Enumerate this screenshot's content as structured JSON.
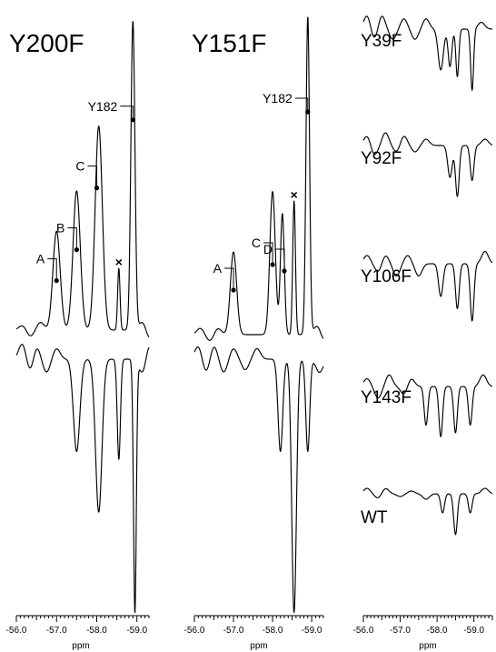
{
  "chart_data": [
    {
      "type": "line",
      "title": "Y200F",
      "xlabel": "ppm",
      "xlim": [
        -56.0,
        -59.3
      ],
      "x_reversed": true,
      "xticks": [
        "-56.0",
        "-57.0",
        "-58.0",
        "-59.0"
      ],
      "series": [
        {
          "role": "upper",
          "baseline": [
            [
              -56.0,
              0.02
            ],
            [
              -59.3,
              0.02
            ]
          ],
          "peaks": [
            {
              "x": -57.0,
              "y": 0.32,
              "w": 0.09
            },
            {
              "x": -57.5,
              "y": 0.45,
              "w": 0.09
            },
            {
              "x": -58.05,
              "y": 0.66,
              "w": 0.09
            },
            {
              "x": -58.55,
              "y": 0.2,
              "w": 0.03
            },
            {
              "x": -58.9,
              "y": 1.0,
              "w": 0.05
            }
          ],
          "ripples": [
            [
              -56.15,
              0.015
            ],
            [
              -56.35,
              -0.02
            ],
            [
              -56.6,
              0.025
            ],
            [
              -59.15,
              0.03
            ],
            [
              -59.3,
              -0.03
            ]
          ]
        },
        {
          "role": "lower",
          "peaks": [
            {
              "x": -57.5,
              "y": -0.35,
              "w": 0.08
            },
            {
              "x": -58.05,
              "y": -0.58,
              "w": 0.08
            },
            {
              "x": -58.55,
              "y": -0.38,
              "w": 0.04
            },
            {
              "x": -58.95,
              "y": -0.96,
              "w": 0.035
            }
          ],
          "ripples": [
            [
              -56.15,
              0.06
            ],
            [
              -56.35,
              -0.05
            ],
            [
              -56.5,
              0.05
            ],
            [
              -56.75,
              -0.05
            ],
            [
              -57.0,
              0.04
            ],
            [
              -59.15,
              -0.06
            ],
            [
              -59.3,
              0.06
            ]
          ]
        }
      ],
      "annotations": [
        {
          "label": "A",
          "x": -57.0,
          "y": 0.16
        },
        {
          "label": "B",
          "x": -57.5,
          "y": 0.26
        },
        {
          "label": "C",
          "x": -58.0,
          "y": 0.46
        },
        {
          "label": "Y182",
          "x": -58.9,
          "y": 0.68
        },
        {
          "label": "×",
          "x": -58.55,
          "y": 0.22
        }
      ]
    },
    {
      "type": "line",
      "title": "Y151F",
      "xlabel": "ppm",
      "xlim": [
        -56.0,
        -59.3
      ],
      "x_reversed": true,
      "xticks": [
        "-56.0",
        "-57.0",
        "-58.0",
        "-59.0"
      ],
      "series": [
        {
          "role": "upper",
          "baseline": [
            [
              -56.0,
              0.02
            ],
            [
              -59.3,
              0.02
            ]
          ],
          "peaks": [
            {
              "x": -57.0,
              "y": 0.26,
              "w": 0.08
            },
            {
              "x": -58.0,
              "y": 0.45,
              "w": 0.07
            },
            {
              "x": -58.25,
              "y": 0.38,
              "w": 0.05
            },
            {
              "x": -58.55,
              "y": 0.42,
              "w": 0.035
            },
            {
              "x": -58.9,
              "y": 1.0,
              "w": 0.045
            }
          ],
          "ripples": [
            [
              -56.15,
              0.02
            ],
            [
              -56.4,
              -0.02
            ],
            [
              -56.6,
              0.02
            ],
            [
              -59.15,
              0.03
            ],
            [
              -59.3,
              -0.02
            ]
          ]
        },
        {
          "role": "lower",
          "peaks": [
            {
              "x": -58.2,
              "y": -0.35,
              "w": 0.06
            },
            {
              "x": -58.55,
              "y": -0.96,
              "w": 0.06
            },
            {
              "x": -58.9,
              "y": -0.35,
              "w": 0.05
            }
          ],
          "ripples": [
            [
              -56.1,
              0.05
            ],
            [
              -56.3,
              -0.05
            ],
            [
              -56.5,
              0.05
            ],
            [
              -56.75,
              -0.05
            ],
            [
              -57.0,
              0.04
            ],
            [
              -57.3,
              -0.04
            ],
            [
              -57.6,
              0.04
            ],
            [
              -59.2,
              -0.05
            ]
          ]
        }
      ],
      "annotations": [
        {
          "label": "A",
          "x": -57.0,
          "y": 0.14
        },
        {
          "label": "C",
          "x": -58.0,
          "y": 0.22
        },
        {
          "label": "D",
          "x": -58.3,
          "y": 0.2
        },
        {
          "label": "Y182",
          "x": -58.9,
          "y": 0.7
        },
        {
          "label": "×",
          "x": -58.55,
          "y": 0.44
        }
      ]
    },
    {
      "type": "line",
      "xlabel": "ppm",
      "xlim": [
        -56.0,
        -59.5
      ],
      "x_reversed": true,
      "xticks": [
        "-56.0",
        "-57.0",
        "-58.0",
        "-59.0"
      ],
      "traces": [
        {
          "name": "Y39F",
          "peaks": [
            {
              "x": -58.1,
              "y": -0.6,
              "w": 0.07
            },
            {
              "x": -58.35,
              "y": -0.55,
              "w": 0.05
            },
            {
              "x": -58.55,
              "y": -0.7,
              "w": 0.04
            },
            {
              "x": -58.95,
              "y": -0.9,
              "w": 0.04
            }
          ],
          "ripples": [
            [
              -56.1,
              0.2
            ],
            [
              -56.3,
              -0.15
            ],
            [
              -56.5,
              0.2
            ],
            [
              -56.8,
              -0.15
            ],
            [
              -57.1,
              0.15
            ],
            [
              -57.4,
              -0.15
            ],
            [
              -57.7,
              0.15
            ],
            [
              -59.2,
              0.1
            ]
          ]
        },
        {
          "name": "Y92F",
          "peaks": [
            {
              "x": -58.35,
              "y": -0.5,
              "w": 0.06
            },
            {
              "x": -58.55,
              "y": -0.8,
              "w": 0.05
            },
            {
              "x": -58.95,
              "y": -0.55,
              "w": 0.05
            }
          ],
          "ripples": [
            [
              -56.1,
              0.15
            ],
            [
              -56.3,
              -0.15
            ],
            [
              -56.6,
              0.2
            ],
            [
              -56.9,
              -0.1
            ],
            [
              -57.1,
              0.15
            ],
            [
              -57.4,
              -0.1
            ],
            [
              -57.7,
              0.1
            ],
            [
              -59.3,
              0.1
            ]
          ]
        },
        {
          "name": "Y106F",
          "peaks": [
            {
              "x": -58.1,
              "y": -0.4,
              "w": 0.06
            },
            {
              "x": -58.55,
              "y": -0.55,
              "w": 0.05
            },
            {
              "x": -58.95,
              "y": -0.7,
              "w": 0.05
            }
          ],
          "ripples": [
            [
              -56.1,
              0.1
            ],
            [
              -56.4,
              -0.1
            ],
            [
              -56.6,
              0.1
            ],
            [
              -56.9,
              -0.15
            ],
            [
              -57.2,
              0.1
            ],
            [
              -57.5,
              -0.15
            ],
            [
              -59.3,
              0.15
            ]
          ]
        },
        {
          "name": "Y143F",
          "peaks": [
            {
              "x": -57.7,
              "y": -0.5,
              "w": 0.05
            },
            {
              "x": -58.1,
              "y": -0.65,
              "w": 0.05
            },
            {
              "x": -58.5,
              "y": -0.6,
              "w": 0.05
            },
            {
              "x": -58.9,
              "y": -0.5,
              "w": 0.05
            }
          ],
          "ripples": [
            [
              -56.1,
              0.1
            ],
            [
              -56.4,
              -0.15
            ],
            [
              -56.7,
              0.15
            ],
            [
              -57.1,
              -0.1
            ],
            [
              -57.3,
              0.1
            ],
            [
              -59.25,
              0.15
            ]
          ]
        },
        {
          "name": "WT",
          "peaks": [
            {
              "x": -58.15,
              "y": -0.35,
              "w": 0.05
            },
            {
              "x": -58.5,
              "y": -0.75,
              "w": 0.05
            },
            {
              "x": -58.9,
              "y": -0.35,
              "w": 0.05
            }
          ],
          "ripples": [
            [
              -56.1,
              0.1
            ],
            [
              -56.4,
              -0.08
            ],
            [
              -56.6,
              0.1
            ],
            [
              -57.0,
              -0.05
            ],
            [
              -57.3,
              0.05
            ],
            [
              -57.7,
              -0.1
            ],
            [
              -59.3,
              0.1
            ]
          ]
        }
      ]
    }
  ]
}
